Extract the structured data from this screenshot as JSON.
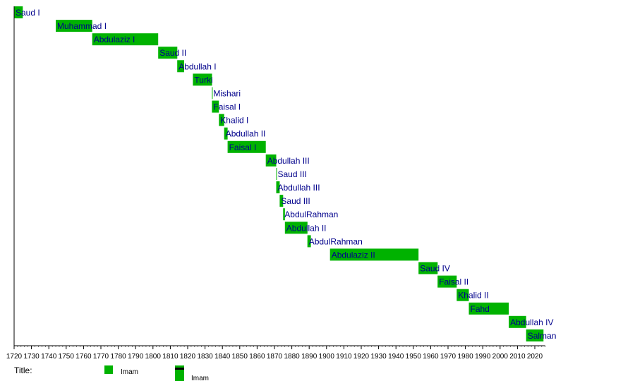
{
  "chart_data": {
    "type": "bar",
    "orientation": "horizontal-timeline",
    "xlim": [
      1720,
      2026
    ],
    "x_ticks": [
      1720,
      1730,
      1740,
      1750,
      1760,
      1770,
      1780,
      1790,
      1800,
      1810,
      1820,
      1830,
      1840,
      1850,
      1860,
      1870,
      1880,
      1890,
      1900,
      1910,
      1920,
      1930,
      1940,
      1950,
      1960,
      1970,
      1980,
      1990,
      2000,
      2010,
      2020
    ],
    "bars": [
      {
        "name": "Saud I",
        "start": 1720,
        "end": 1725
      },
      {
        "name": "Muhammad I",
        "start": 1744,
        "end": 1765
      },
      {
        "name": "Abdulaziz I",
        "start": 1765,
        "end": 1803
      },
      {
        "name": "Saud II",
        "start": 1803,
        "end": 1814
      },
      {
        "name": "Abdullah I",
        "start": 1814,
        "end": 1818
      },
      {
        "name": "Turki",
        "start": 1823,
        "end": 1834
      },
      {
        "name": "Mishari",
        "start": 1834,
        "end": 1834.4
      },
      {
        "name": "Faisal I",
        "start": 1834,
        "end": 1838
      },
      {
        "name": "Khalid I",
        "start": 1838,
        "end": 1841
      },
      {
        "name": "Abdullah II",
        "start": 1841,
        "end": 1843
      },
      {
        "name": "Faisal I",
        "start": 1843,
        "end": 1865
      },
      {
        "name": "Abdullah III",
        "start": 1865,
        "end": 1871
      },
      {
        "name": "Saud III",
        "start": 1871,
        "end": 1871.4
      },
      {
        "name": "Abdullah III",
        "start": 1871,
        "end": 1873
      },
      {
        "name": "Saud III",
        "start": 1873,
        "end": 1875
      },
      {
        "name": "AbdulRahman",
        "start": 1875,
        "end": 1876
      },
      {
        "name": "Abdullah II",
        "start": 1876,
        "end": 1889
      },
      {
        "name": "AbdulRahman",
        "start": 1889,
        "end": 1891
      },
      {
        "name": "Abdulaziz II",
        "start": 1902,
        "end": 1953
      },
      {
        "name": "Saud IV",
        "start": 1953,
        "end": 1964
      },
      {
        "name": "Faisal II",
        "start": 1964,
        "end": 1975
      },
      {
        "name": "Khalid II",
        "start": 1975,
        "end": 1982
      },
      {
        "name": "Fahd",
        "start": 1982,
        "end": 2005
      },
      {
        "name": "Abdullah IV",
        "start": 2005,
        "end": 2015
      },
      {
        "name": "Salman",
        "start": 2015,
        "end": 2025
      }
    ],
    "legend": {
      "title": "Title:",
      "entries": [
        "Imam",
        "Imam"
      ],
      "placement": "bottom-left"
    },
    "bar_color": "#00b200",
    "label_color": "#00008b"
  }
}
